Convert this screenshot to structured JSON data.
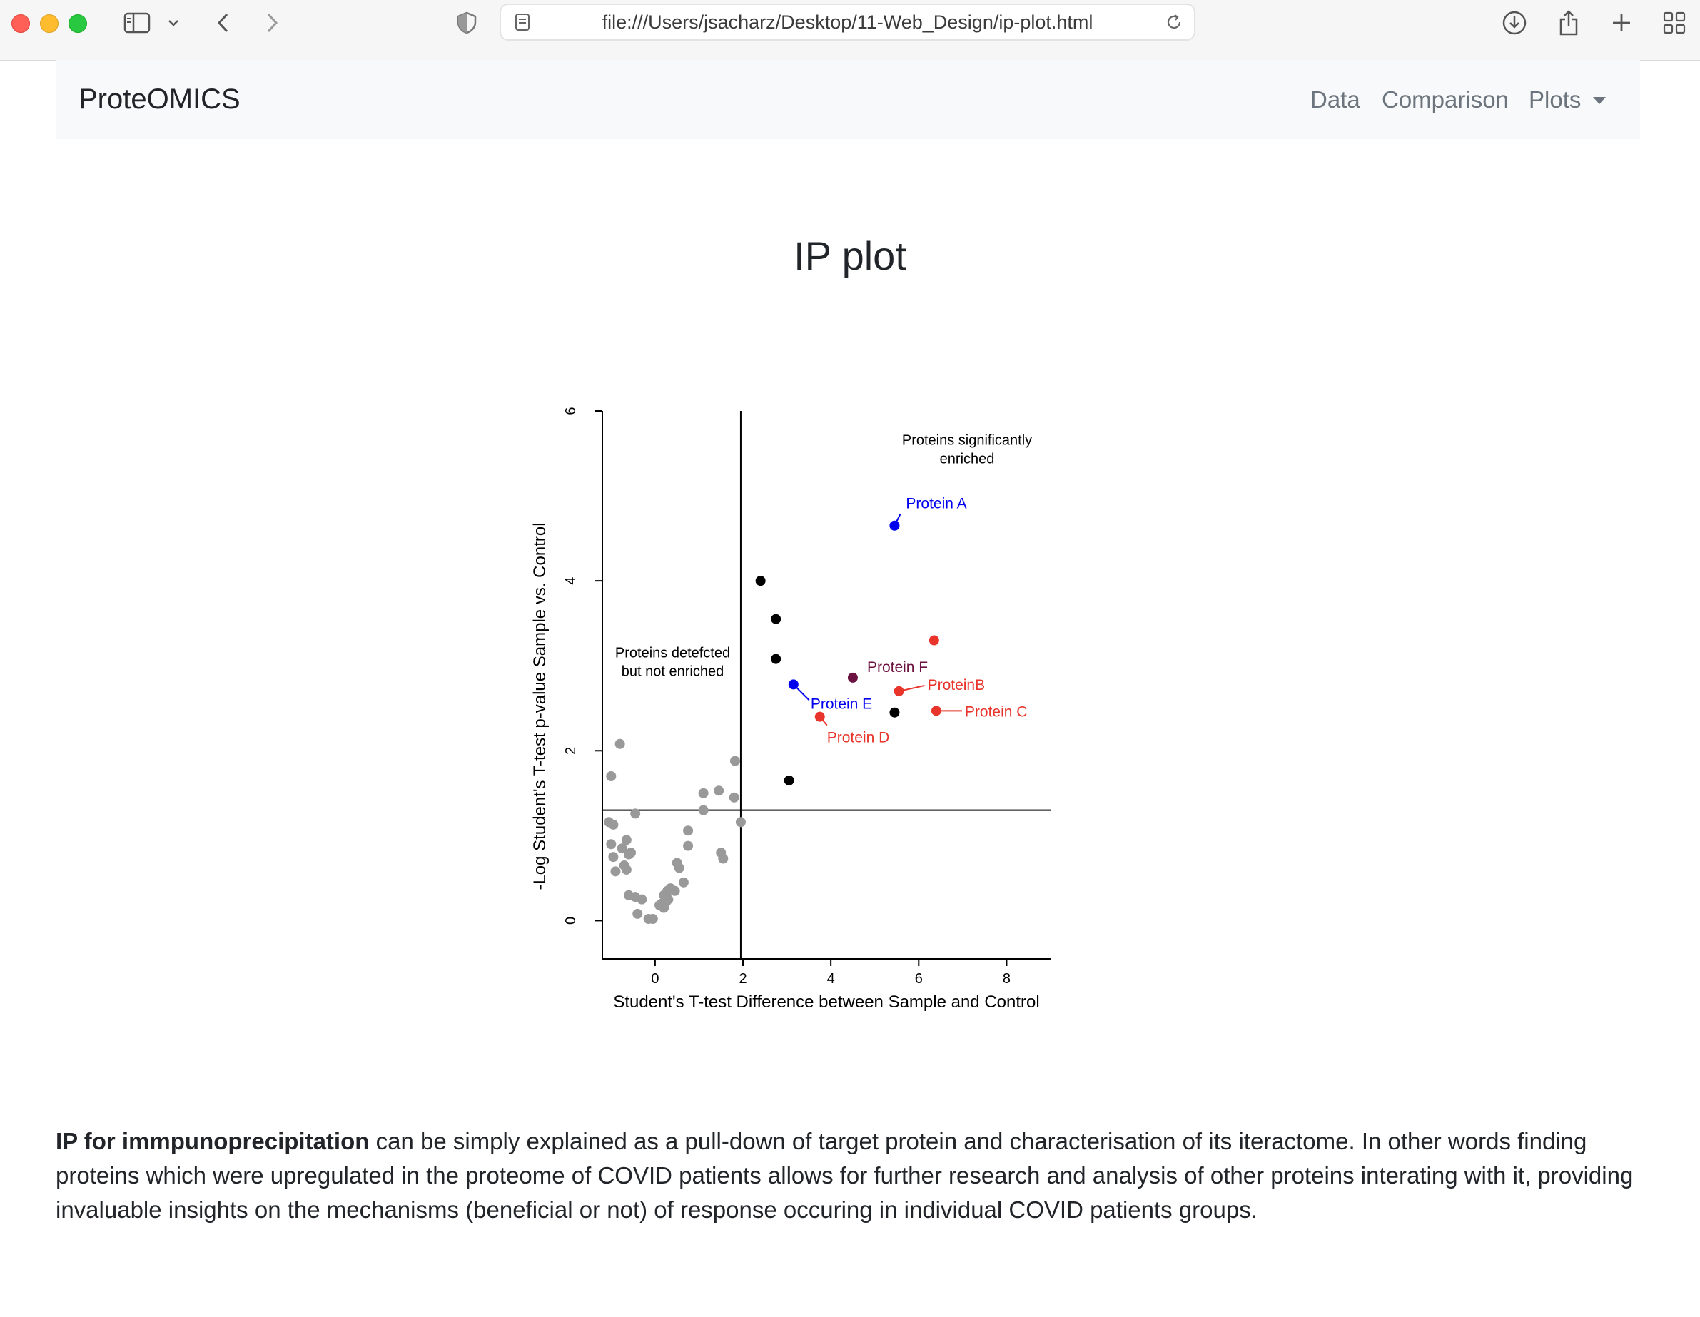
{
  "browser": {
    "url": "file:///Users/jsacharz/Desktop/11-Web_Design/ip-plot.html"
  },
  "navbar": {
    "brand": "ProteOMICS",
    "links": [
      "Data",
      "Comparison",
      "Plots"
    ]
  },
  "page": {
    "title": "IP plot",
    "paragraph_bold": "IP for immpunoprecipitation",
    "paragraph_rest": " can be simply explained as a pull-down of target protein and characterisation of its iteractome. In other words finding proteins which were upregulated in the proteome of COVID patients allows for further research and analysis of other proteins interating with it, providing invaluable insights on the mechanisms (beneficial or not) of response occuring in individual COVID patients groups."
  },
  "chart_data": {
    "type": "scatter",
    "xlabel": "Student's T-test Difference between Sample and Control",
    "ylabel": "-Log Student's T-test p-value Sample vs. Control",
    "xlim": [
      -1.2,
      9
    ],
    "ylim": [
      -0.45,
      6
    ],
    "xticks": [
      0,
      2,
      4,
      6,
      8
    ],
    "yticks": [
      0,
      2,
      4,
      6
    ],
    "thresholds": {
      "x": 1.95,
      "y": 1.3
    },
    "annotations": [
      {
        "lines": [
          "Proteins significantly",
          "enriched"
        ],
        "x": 7.1,
        "y": 5.6
      },
      {
        "lines": [
          "Proteins detefcted",
          "but not enriched"
        ],
        "x": 0.4,
        "y": 3.1
      }
    ],
    "colors": {
      "not_enriched": "#999999",
      "enriched": "#000000",
      "blue": "#0000ee",
      "red": "#e8342a",
      "purple": "#6b1240"
    },
    "series": [
      {
        "group": "not_enriched",
        "color": "#999999",
        "points": [
          [
            -1.05,
            1.16
          ],
          [
            -0.95,
            1.13
          ],
          [
            -1.0,
            0.9
          ],
          [
            -0.95,
            0.75
          ],
          [
            -0.9,
            0.58
          ],
          [
            -0.75,
            0.85
          ],
          [
            -0.65,
            0.95
          ],
          [
            -0.6,
            0.78
          ],
          [
            -0.7,
            0.65
          ],
          [
            -0.65,
            0.6
          ],
          [
            -0.55,
            0.8
          ],
          [
            -0.6,
            0.3
          ],
          [
            -0.45,
            0.28
          ],
          [
            -0.3,
            0.25
          ],
          [
            -0.4,
            0.08
          ],
          [
            -0.15,
            0.02
          ],
          [
            -0.05,
            0.02
          ],
          [
            0.1,
            0.18
          ],
          [
            0.15,
            0.2
          ],
          [
            0.2,
            0.3
          ],
          [
            0.25,
            0.22
          ],
          [
            0.2,
            0.15
          ],
          [
            0.3,
            0.25
          ],
          [
            0.28,
            0.35
          ],
          [
            0.35,
            0.38
          ],
          [
            0.45,
            0.35
          ],
          [
            0.5,
            0.68
          ],
          [
            0.55,
            0.62
          ],
          [
            0.65,
            0.45
          ],
          [
            0.75,
            0.88
          ],
          [
            0.75,
            1.06
          ],
          [
            1.1,
            1.5
          ],
          [
            1.1,
            1.3
          ],
          [
            1.45,
            1.53
          ],
          [
            1.5,
            0.8
          ],
          [
            1.55,
            0.73
          ],
          [
            1.82,
            1.88
          ],
          [
            1.8,
            1.45
          ],
          [
            1.95,
            1.16
          ],
          [
            -0.8,
            2.08
          ],
          [
            -1.0,
            1.7
          ],
          [
            -0.45,
            1.26
          ]
        ]
      },
      {
        "group": "enriched",
        "color": "#000000",
        "points": [
          [
            2.4,
            4.0
          ],
          [
            2.75,
            3.55
          ],
          [
            2.75,
            3.08
          ],
          [
            3.05,
            1.65
          ],
          [
            5.45,
            2.45
          ]
        ]
      }
    ],
    "labeled_proteins": [
      {
        "name": "Protein A",
        "x": 5.45,
        "y": 4.65,
        "color": "#0000ee"
      },
      {
        "name": "ProteinB",
        "x": 5.55,
        "y": 2.7,
        "color": "#e8342a"
      },
      {
        "name": "Protein C",
        "x": 6.4,
        "y": 2.47,
        "color": "#e8342a"
      },
      {
        "name": "Protein D",
        "x": 3.75,
        "y": 2.4,
        "color": "#e8342a"
      },
      {
        "name": "Protein E",
        "x": 3.15,
        "y": 2.78,
        "color": "#0000ee"
      },
      {
        "name": "Protein F",
        "x": 4.5,
        "y": 2.86,
        "color": "#6b1240"
      },
      {
        "name": "",
        "x": 6.35,
        "y": 3.3,
        "color": "#e8342a"
      }
    ]
  }
}
